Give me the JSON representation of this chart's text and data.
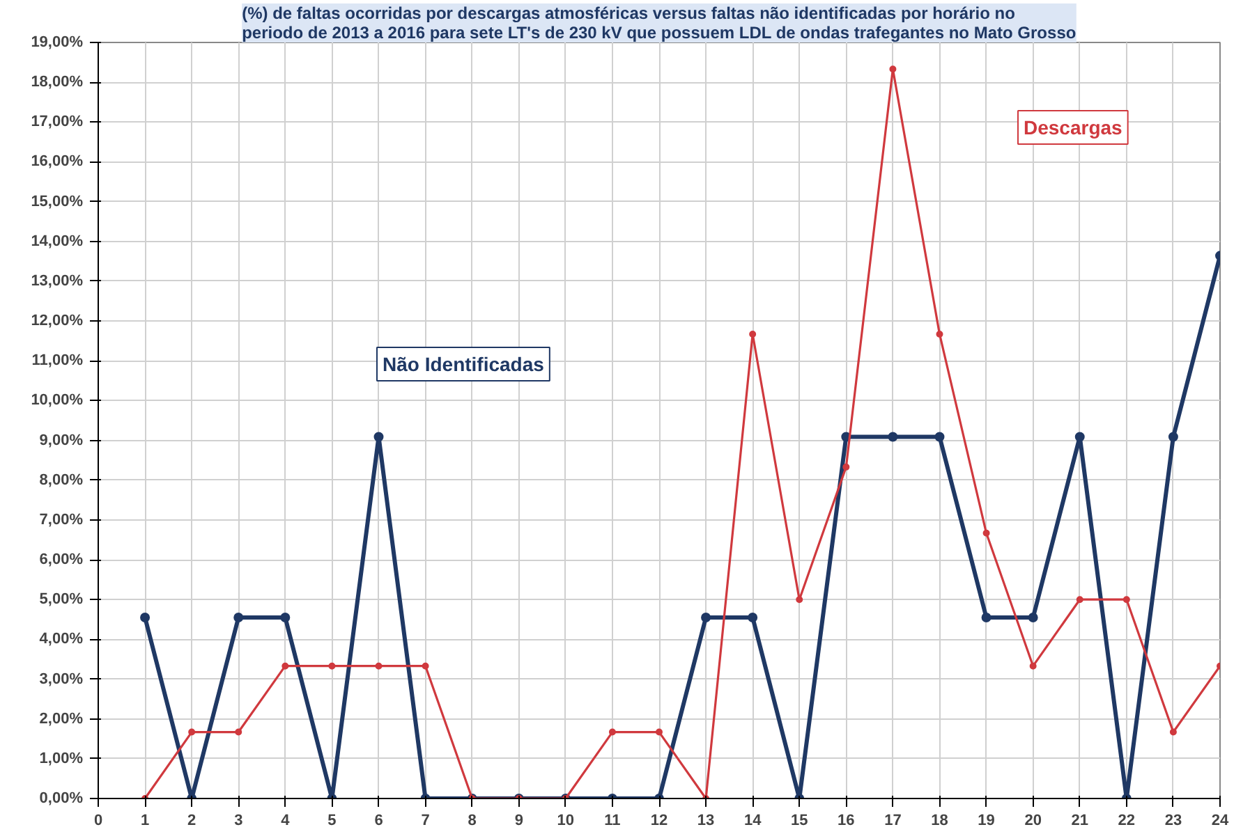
{
  "chart_data": {
    "type": "line",
    "title": "(%) de faltas ocorridas por descargas atmosféricas versus faltas não identificadas por horário no periodo de 2013 a 2016 para sete LT's de 230 kV que possuem LDL de ondas trafegantes no Mato Grosso",
    "x": [
      1,
      2,
      3,
      4,
      5,
      6,
      7,
      8,
      9,
      10,
      11,
      12,
      13,
      14,
      15,
      16,
      17,
      18,
      19,
      20,
      21,
      22,
      23,
      24
    ],
    "series": [
      {
        "name": "Não Identificadas",
        "color": "#1f3864",
        "values": [
          4.55,
          0,
          4.55,
          4.55,
          0,
          9.09,
          0,
          0,
          0,
          0,
          0,
          0,
          4.55,
          4.55,
          0,
          9.09,
          9.09,
          9.09,
          4.55,
          4.55,
          9.09,
          0,
          9.09,
          13.64
        ]
      },
      {
        "name": "Descargas",
        "color": "#d0393e",
        "values": [
          0,
          1.67,
          1.67,
          3.33,
          3.33,
          3.33,
          3.33,
          0,
          0,
          0,
          1.67,
          1.67,
          0,
          11.67,
          5,
          8.33,
          18.33,
          11.67,
          6.67,
          3.33,
          5,
          5,
          1.67,
          3.33
        ]
      }
    ],
    "xlim": [
      0,
      24
    ],
    "xticks": [
      0,
      1,
      2,
      3,
      4,
      5,
      6,
      7,
      8,
      9,
      10,
      11,
      12,
      13,
      14,
      15,
      16,
      17,
      18,
      19,
      20,
      21,
      22,
      23,
      24
    ],
    "ylim": [
      0,
      19
    ],
    "yticks": [
      {
        "value": 0,
        "label": "0,00%"
      },
      {
        "value": 1,
        "label": "1,00%"
      },
      {
        "value": 2,
        "label": "2,00%"
      },
      {
        "value": 3,
        "label": "3,00%"
      },
      {
        "value": 4,
        "label": "4,00%"
      },
      {
        "value": 5,
        "label": "5,00%"
      },
      {
        "value": 6,
        "label": "6,00%"
      },
      {
        "value": 7,
        "label": "7,00%"
      },
      {
        "value": 8,
        "label": "8,00%"
      },
      {
        "value": 9,
        "label": "9,00%"
      },
      {
        "value": 10,
        "label": "10,00%"
      },
      {
        "value": 11,
        "label": "11,00%"
      },
      {
        "value": 12,
        "label": "12,00%"
      },
      {
        "value": 13,
        "label": "13,00%"
      },
      {
        "value": 14,
        "label": "14,00%"
      },
      {
        "value": 15,
        "label": "15,00%"
      },
      {
        "value": 16,
        "label": "16,00%"
      },
      {
        "value": 17,
        "label": "17,00%"
      },
      {
        "value": 18,
        "label": "18,00%"
      },
      {
        "value": 19,
        "label": "19,00%"
      }
    ],
    "grid": true,
    "legend": false,
    "marker": "circle",
    "line_style": "solid"
  }
}
